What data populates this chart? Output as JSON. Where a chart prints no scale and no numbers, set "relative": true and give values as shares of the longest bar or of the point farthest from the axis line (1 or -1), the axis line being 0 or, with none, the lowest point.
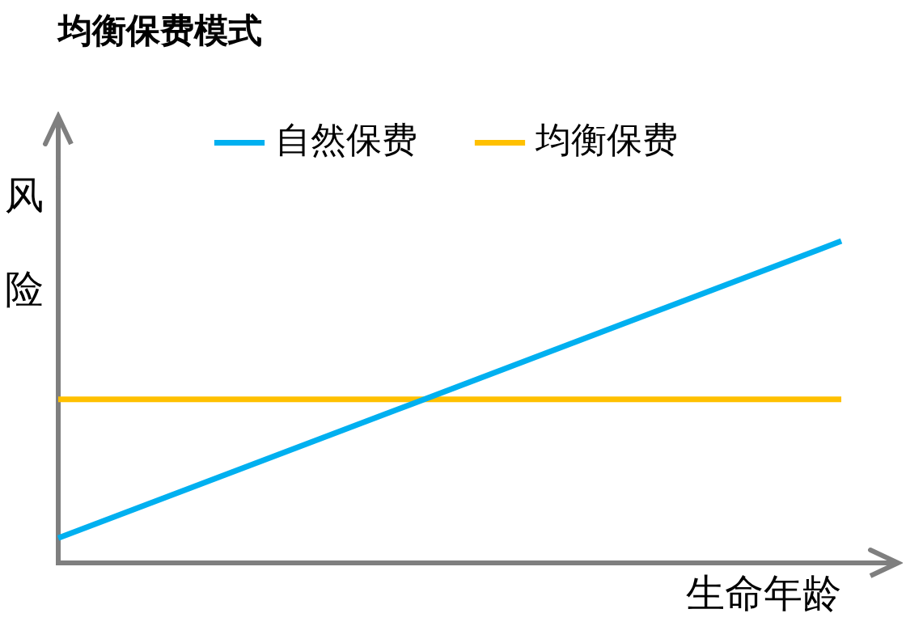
{
  "chart_data": {
    "type": "line",
    "title": "均衡保费模式",
    "xlabel": "生命年龄",
    "ylabel": "风险",
    "relative": true,
    "categories": [
      null,
      null
    ],
    "series": [
      {
        "name": "自然保费",
        "color": "#00b0f0",
        "values": [
          0.078,
          1
        ]
      },
      {
        "name": "均衡保费",
        "color": "#ffc000",
        "values": [
          0.509,
          0.509
        ]
      }
    ],
    "legend": "top",
    "grid": false,
    "marker": "none",
    "line_style": "solid"
  }
}
